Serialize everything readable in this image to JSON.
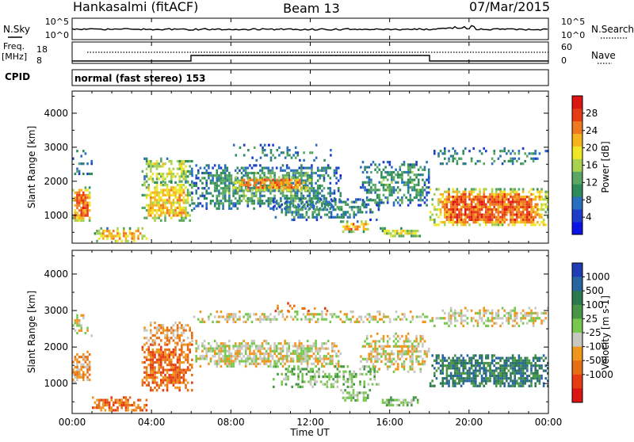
{
  "header": {
    "station": "Hankasalmi (fitACF)",
    "beam": "Beam 13",
    "date": "07/Mar/2015"
  },
  "status_panels": {
    "nsky_label": "N.Sky",
    "nsearch_label": "N.Search",
    "noise_ticks": [
      "10^5",
      "10^0"
    ],
    "freq_label": "Freq.",
    "freq_unit": "[MHz]",
    "freq_ticks": [
      "18",
      "8"
    ],
    "nave_ticks": [
      "60",
      "0"
    ],
    "nave_label": "Nave",
    "cpid_label": "CPID",
    "cpid_text": "normal (fast stereo) 153"
  },
  "colors": {
    "power": [
      "#0a14e6",
      "#1e3cc8",
      "#2a6ebe",
      "#2e8b5a",
      "#5aa864",
      "#a8d250",
      "#f0e628",
      "#f5b41e",
      "#f0781e",
      "#e63c14",
      "#dc1414"
    ],
    "velocity": [
      "#1e3cb4",
      "#2864a0",
      "#2e7850",
      "#469646",
      "#78c850",
      "#c8c8c0",
      "#f0961e",
      "#e66e14",
      "#e63c14",
      "#dc1414"
    ]
  },
  "chart_data": [
    {
      "type": "heatmap",
      "name": "Power",
      "ylabel": "Slant Range [km]",
      "ylim": [
        180,
        4650
      ],
      "xlim": [
        0,
        24
      ],
      "yticks": [
        1000,
        2000,
        3000,
        4000
      ],
      "colorbar_label": "Power [dB]",
      "colorbar_range": [
        0,
        32
      ],
      "colorbar_ticks": [
        "4",
        "8",
        "12",
        "16",
        "20",
        "24",
        "28"
      ],
      "regions": [
        {
          "t0": 0.0,
          "t1": 0.9,
          "r0": 850,
          "r1": 1850,
          "v": 26,
          "d": 0.9
        },
        {
          "t0": 0.0,
          "t1": 1.0,
          "r0": 2200,
          "r1": 3000,
          "v": 10,
          "d": 0.25
        },
        {
          "t0": 1.0,
          "t1": 3.8,
          "r0": 250,
          "r1": 650,
          "v": 22,
          "d": 0.55
        },
        {
          "t0": 3.5,
          "t1": 6.0,
          "r0": 850,
          "r1": 2000,
          "v": 21,
          "d": 0.8
        },
        {
          "t0": 3.5,
          "t1": 6.0,
          "r0": 2000,
          "r1": 2700,
          "v": 17,
          "d": 0.55
        },
        {
          "t0": 6.0,
          "t1": 13.5,
          "r0": 1200,
          "r1": 2500,
          "v": 11,
          "d": 0.65
        },
        {
          "t0": 8.0,
          "t1": 12.0,
          "r0": 1750,
          "r1": 2150,
          "v": 24,
          "d": 0.7
        },
        {
          "t0": 10.0,
          "t1": 15.5,
          "r0": 900,
          "r1": 1500,
          "v": 10,
          "d": 0.45
        },
        {
          "t0": 13.5,
          "t1": 15.0,
          "r0": 550,
          "r1": 850,
          "v": 23,
          "d": 0.75
        },
        {
          "t0": 14.5,
          "t1": 18.0,
          "r0": 1300,
          "r1": 2600,
          "v": 11,
          "d": 0.5
        },
        {
          "t0": 15.5,
          "t1": 17.5,
          "r0": 400,
          "r1": 650,
          "v": 18,
          "d": 0.65
        },
        {
          "t0": 18.0,
          "t1": 24.0,
          "r0": 700,
          "r1": 1800,
          "v": 26,
          "d": 0.85
        },
        {
          "t0": 18.0,
          "t1": 24.0,
          "r0": 2500,
          "r1": 3000,
          "v": 10,
          "d": 0.35
        },
        {
          "t0": 8.0,
          "t1": 13.0,
          "r0": 2600,
          "r1": 3100,
          "v": 9,
          "d": 0.2
        }
      ]
    },
    {
      "type": "heatmap",
      "name": "Velocity",
      "ylabel": "Slant Range [km]",
      "ylim": [
        180,
        4650
      ],
      "xlim": [
        0,
        24
      ],
      "yticks": [
        1000,
        2000,
        3000,
        4000
      ],
      "xticks": [
        "00:00",
        "04:00",
        "08:00",
        "12:00",
        "16:00",
        "20:00",
        "00:00"
      ],
      "xlabel": "Time UT",
      "colorbar_label": "Velocity [m s-1]",
      "colorbar_ticks": [
        "1000",
        "500",
        "100",
        "25",
        "-25",
        "-100",
        "-500",
        "-1000"
      ],
      "regions": [
        {
          "t0": 0.0,
          "t1": 0.9,
          "r0": 1000,
          "r1": 1900,
          "v": 6,
          "d": 0.75
        },
        {
          "t0": 0.0,
          "t1": 1.0,
          "r0": 2300,
          "r1": 2900,
          "v": 5,
          "d": 0.3
        },
        {
          "t0": 1.0,
          "t1": 3.8,
          "r0": 250,
          "r1": 650,
          "v": 7,
          "d": 0.6
        },
        {
          "t0": 3.5,
          "t1": 6.0,
          "r0": 850,
          "r1": 2100,
          "v": 7,
          "d": 0.75
        },
        {
          "t0": 3.5,
          "t1": 6.0,
          "r0": 2100,
          "r1": 2700,
          "v": 6,
          "d": 0.5
        },
        {
          "t0": 6.0,
          "t1": 13.5,
          "r0": 1500,
          "r1": 2200,
          "v": 5,
          "d": 0.7
        },
        {
          "t0": 6.0,
          "t1": 18.0,
          "r0": 2700,
          "r1": 3000,
          "v": 5,
          "d": 0.45
        },
        {
          "t0": 10.0,
          "t1": 15.5,
          "r0": 900,
          "r1": 1500,
          "v": 4,
          "d": 0.45
        },
        {
          "t0": 13.5,
          "t1": 15.0,
          "r0": 550,
          "r1": 850,
          "v": 4,
          "d": 0.7
        },
        {
          "t0": 14.5,
          "t1": 18.0,
          "r0": 1300,
          "r1": 2400,
          "v": 5,
          "d": 0.55
        },
        {
          "t0": 15.5,
          "t1": 17.5,
          "r0": 400,
          "r1": 650,
          "v": 4,
          "d": 0.6
        },
        {
          "t0": 18.0,
          "t1": 24.0,
          "r0": 900,
          "r1": 1800,
          "v": 2,
          "d": 0.8
        },
        {
          "t0": 18.0,
          "t1": 24.0,
          "r0": 2600,
          "r1": 3100,
          "v": 5,
          "d": 0.5
        },
        {
          "t0": 10.0,
          "t1": 13.0,
          "r0": 3000,
          "r1": 3300,
          "v": 7,
          "d": 0.2
        }
      ]
    }
  ]
}
